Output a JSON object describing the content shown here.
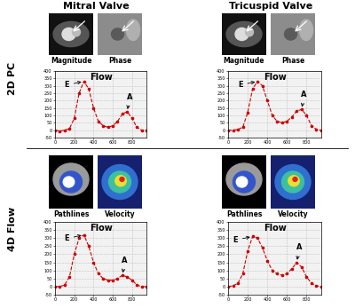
{
  "columns": [
    "Mitral Valve",
    "Tricuspid Valve"
  ],
  "rows": [
    "2D PC",
    "4D Flow"
  ],
  "image_labels": [
    [
      "Magnitude",
      "Phase"
    ],
    [
      "Pathlines",
      "Velocity"
    ]
  ],
  "chart_data": [
    {
      "type": "line",
      "title": "Flow",
      "color": "#cc0000",
      "marker": "o",
      "line_style": "dashed",
      "grid": true,
      "x": [
        0,
        50,
        100,
        150,
        200,
        250,
        300,
        350,
        400,
        450,
        500,
        550,
        600,
        650,
        700,
        750,
        800,
        850,
        900,
        950
      ],
      "values": [
        0,
        -5,
        0,
        10,
        80,
        250,
        330,
        280,
        150,
        60,
        30,
        20,
        30,
        60,
        110,
        125,
        80,
        20,
        0,
        0
      ],
      "xlim": [
        0,
        950
      ],
      "xticks": [
        0,
        200,
        400,
        600,
        800
      ],
      "ylim": [
        -50,
        400
      ],
      "yticks": [
        -50,
        0,
        50,
        100,
        150,
        200,
        250,
        300,
        350,
        400
      ],
      "annotations": [
        {
          "text": "E",
          "x": 300
        },
        {
          "text": "A",
          "x": 750
        }
      ]
    },
    {
      "type": "line",
      "title": "Flow",
      "color": "#cc0000",
      "marker": "o",
      "line_style": "dashed",
      "grid": true,
      "x": [
        0,
        50,
        100,
        150,
        200,
        250,
        300,
        350,
        400,
        450,
        500,
        550,
        600,
        650,
        700,
        750,
        800,
        850,
        900,
        950
      ],
      "values": [
        0,
        0,
        5,
        20,
        120,
        280,
        330,
        300,
        200,
        100,
        60,
        50,
        60,
        90,
        130,
        140,
        100,
        30,
        5,
        0
      ],
      "xlim": [
        0,
        950
      ],
      "xticks": [
        0,
        200,
        400,
        600,
        800
      ],
      "ylim": [
        -50,
        400
      ],
      "yticks": [
        -50,
        0,
        50,
        100,
        150,
        200,
        250,
        300,
        350,
        400
      ],
      "annotations": [
        {
          "text": "E",
          "x": 300
        },
        {
          "text": "A",
          "x": 750
        }
      ]
    },
    {
      "type": "line",
      "title": "Flow",
      "color": "#cc0000",
      "marker": "o",
      "line_style": "dashed",
      "grid": true,
      "x": [
        0,
        50,
        100,
        150,
        200,
        250,
        300,
        350,
        400,
        450,
        500,
        550,
        600,
        650,
        700,
        750,
        800,
        850,
        900,
        950
      ],
      "values": [
        0,
        0,
        10,
        60,
        200,
        300,
        320,
        250,
        150,
        80,
        50,
        40,
        40,
        50,
        70,
        60,
        40,
        10,
        0,
        0
      ],
      "xlim": [
        0,
        950
      ],
      "xticks": [
        0,
        200,
        400,
        600,
        800
      ],
      "ylim": [
        -50,
        400
      ],
      "yticks": [
        -50,
        0,
        50,
        100,
        150,
        200,
        250,
        300,
        350,
        400
      ],
      "annotations": [
        {
          "text": "E",
          "x": 300
        },
        {
          "text": "A",
          "x": 700
        }
      ]
    },
    {
      "type": "line",
      "title": "Flow",
      "color": "#cc0000",
      "marker": "o",
      "line_style": "dashed",
      "grid": true,
      "x": [
        0,
        50,
        100,
        150,
        200,
        250,
        300,
        350,
        400,
        450,
        500,
        550,
        600,
        650,
        700,
        750,
        800,
        850,
        900,
        950
      ],
      "values": [
        0,
        5,
        20,
        80,
        220,
        310,
        300,
        240,
        160,
        100,
        80,
        70,
        80,
        110,
        150,
        120,
        60,
        20,
        5,
        0
      ],
      "xlim": [
        0,
        950
      ],
      "xticks": [
        0,
        200,
        400,
        600,
        800
      ],
      "ylim": [
        -50,
        400
      ],
      "yticks": [
        -50,
        0,
        50,
        100,
        150,
        200,
        250,
        300,
        350,
        400
      ],
      "annotations": [
        {
          "text": "E",
          "x": 250
        },
        {
          "text": "A",
          "x": 700
        }
      ]
    }
  ]
}
